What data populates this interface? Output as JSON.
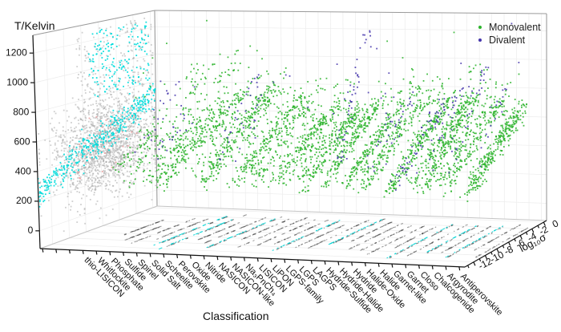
{
  "chart_data": {
    "type": "scatter3d",
    "axes": {
      "y": {
        "label": "T/Kelvin",
        "ticks": [
          0,
          200,
          400,
          600,
          800,
          1000,
          1200
        ],
        "range": [
          -120,
          1320
        ]
      },
      "x": {
        "label": "Classification",
        "categories": [
          "thio-LISICON",
          "Whitlockite",
          "Phosphate",
          "Sulfide",
          "Spinel",
          "Solid Salt",
          "Scheelite",
          "Perovskite",
          "Oxide",
          "Nitride",
          "NASICON",
          "NASICON-like",
          "Na₃PnCh₄",
          "LISICON",
          "LiPON",
          "LGPS-family",
          "LGPS",
          "LAGPS",
          "Hydride-Sulfide",
          "Hydride-Halide",
          "Hydride",
          "Halide-Oxide",
          "Halide",
          "Garnet-like",
          "Garnet",
          "Closo",
          "Chalcogenide",
          "Argyrodite",
          "Antiperovskite"
        ]
      },
      "z": {
        "label": "log₁₀σ",
        "ticks": [
          -12,
          -10,
          -8,
          -6,
          -4,
          -2,
          0
        ],
        "range": [
          -13.5,
          0.5
        ]
      }
    },
    "legend": [
      {
        "label": "Monovalent",
        "color": "#2cb42c"
      },
      {
        "label": "Divalent",
        "color": "#4636ac"
      }
    ],
    "colors": {
      "monovalent": "#2cb42c",
      "divalent": "#4636ac",
      "projection_side": "#a8a8a8",
      "projection_side_highlight": "#00dcdc",
      "projection_side_accent": "#e89595",
      "projection_floor": "#4a4a4a",
      "projection_floor_highlight": "#00d5d5",
      "grid": "#ececec",
      "box_edge": "#9a9a9a",
      "axis": "#111111"
    },
    "seed": 7,
    "clusters": [
      {
        "name": "thio-LISICON",
        "mono": {
          "n": 35,
          "T": [
            350,
            620
          ],
          "s": [
            -9,
            -3.5
          ]
        }
      },
      {
        "name": "Whitlockite",
        "mono": {
          "n": 25,
          "T": [
            350,
            560
          ],
          "s": [
            -10,
            -6
          ]
        }
      },
      {
        "name": "Phosphate",
        "mono": {
          "n": 60,
          "T": [
            300,
            660
          ],
          "s": [
            -11,
            -3
          ]
        },
        "di": {
          "n": 15,
          "T": [
            420,
            900
          ],
          "s": [
            -10,
            -5
          ]
        }
      },
      {
        "name": "Sulfide",
        "mono": {
          "n": 70,
          "T": [
            300,
            660
          ],
          "s": [
            -10,
            -2.5
          ]
        },
        "di": {
          "n": 18,
          "T": [
            350,
            800
          ],
          "s": [
            -9,
            -4
          ]
        }
      },
      {
        "name": "Spinel",
        "mono": {
          "n": 110,
          "T": [
            300,
            700
          ],
          "s": [
            -11,
            -2
          ],
          "tail": 1000
        },
        "floor_cyan": true
      },
      {
        "name": "Solid Salt",
        "mono": {
          "n": 140,
          "T": [
            300,
            750
          ],
          "s": [
            -12,
            -1.5
          ],
          "tail": 1060
        },
        "floor_cyan": true
      },
      {
        "name": "Scheelite",
        "mono": {
          "n": 45,
          "T": [
            340,
            650
          ],
          "s": [
            -9,
            -4
          ]
        }
      },
      {
        "name": "Perovskite",
        "mono": {
          "n": 100,
          "T": [
            300,
            760
          ],
          "s": [
            -10,
            -2
          ],
          "tail": 1000
        }
      },
      {
        "name": "Oxide",
        "mono": {
          "n": 150,
          "T": [
            300,
            800
          ],
          "s": [
            -11,
            -1.5
          ],
          "tail": 1150
        },
        "di": {
          "n": 22,
          "T": [
            400,
            950
          ],
          "s": [
            -10,
            -4
          ]
        },
        "floor_cyan": true
      },
      {
        "name": "Nitride",
        "mono": {
          "n": 60,
          "T": [
            300,
            700
          ],
          "s": [
            -9,
            -2
          ]
        },
        "di": {
          "n": 12,
          "T": [
            400,
            850
          ],
          "s": [
            -9,
            -5
          ]
        }
      },
      {
        "name": "NASICON",
        "mono": {
          "n": 140,
          "T": [
            300,
            760
          ],
          "s": [
            -11,
            -1.5
          ],
          "tail": 1000
        }
      },
      {
        "name": "NASICON-like",
        "mono": {
          "n": 110,
          "T": [
            300,
            700
          ],
          "s": [
            -10,
            -2
          ]
        }
      },
      {
        "name": "Na₃PnCh₄",
        "mono": {
          "n": 70,
          "T": [
            300,
            620
          ],
          "s": [
            -9,
            -2
          ]
        }
      },
      {
        "name": "LISICON",
        "mono": {
          "n": 120,
          "T": [
            300,
            700
          ],
          "s": [
            -11,
            -2
          ],
          "tail": 950
        },
        "floor_cyan": true
      },
      {
        "name": "LiPON",
        "mono": {
          "n": 80,
          "T": [
            300,
            620
          ],
          "s": [
            -10,
            -3
          ]
        }
      },
      {
        "name": "LGPS-family",
        "mono": {
          "n": 170,
          "T": [
            280,
            700
          ],
          "s": [
            -10,
            -1.5
          ],
          "tail": 920
        }
      },
      {
        "name": "LGPS",
        "mono": {
          "n": 190,
          "T": [
            280,
            710
          ],
          "s": [
            -9,
            -1
          ]
        },
        "floor_cyan": true
      },
      {
        "name": "LAGPS",
        "mono": {
          "n": 60,
          "T": [
            300,
            620
          ],
          "s": [
            -8,
            -2
          ]
        }
      },
      {
        "name": "Hydride-Sulfide",
        "mono": {
          "n": 110,
          "T": [
            300,
            700
          ],
          "s": [
            -10,
            -2
          ]
        },
        "di": {
          "n": 45,
          "T": [
            420,
            1260
          ],
          "s": [
            -11,
            -6
          ]
        }
      },
      {
        "name": "Hydride-Halide",
        "mono": {
          "n": 70,
          "T": [
            300,
            660
          ],
          "s": [
            -10,
            -3
          ]
        },
        "di": {
          "n": 12,
          "T": [
            350,
            700
          ],
          "s": [
            -9,
            -5
          ]
        }
      },
      {
        "name": "Hydride",
        "mono": {
          "n": 100,
          "T": [
            300,
            760
          ],
          "s": [
            -11,
            -2
          ],
          "tail": 1000
        },
        "di": {
          "n": 18,
          "T": [
            350,
            800
          ],
          "s": [
            -10,
            -4
          ]
        }
      },
      {
        "name": "Halide-Oxide",
        "mono": {
          "n": 60,
          "T": [
            300,
            660
          ],
          "s": [
            -9,
            -3
          ]
        }
      },
      {
        "name": "Halide",
        "mono": {
          "n": 190,
          "T": [
            280,
            760
          ],
          "s": [
            -12,
            -1.5
          ],
          "tail": 1000
        },
        "di": {
          "n": 55,
          "T": [
            300,
            760
          ],
          "s": [
            -11,
            -3
          ]
        },
        "floor_cyan": true
      },
      {
        "name": "Garnet-like",
        "mono": {
          "n": 170,
          "T": [
            300,
            760
          ],
          "s": [
            -11,
            -1.5
          ],
          "tail": 960
        }
      },
      {
        "name": "Garnet",
        "mono": {
          "n": 150,
          "T": [
            300,
            760
          ],
          "s": [
            -10,
            -1.5
          ]
        },
        "di": {
          "n": 20,
          "T": [
            400,
            900
          ],
          "s": [
            -9,
            -4
          ]
        },
        "floor_cyan": true
      },
      {
        "name": "Closo",
        "mono": {
          "n": 90,
          "T": [
            300,
            710
          ],
          "s": [
            -10,
            -2
          ]
        }
      },
      {
        "name": "Chalcogenide",
        "mono": {
          "n": 140,
          "T": [
            300,
            760
          ],
          "s": [
            -11,
            -1.5
          ],
          "tail": 1100
        },
        "di": {
          "n": 25,
          "T": [
            400,
            1000
          ],
          "s": [
            -10,
            -4
          ]
        },
        "floor_cyan": true
      },
      {
        "name": "Argyrodite",
        "mono": {
          "n": 170,
          "T": [
            280,
            700
          ],
          "s": [
            -10,
            -1
          ]
        }
      },
      {
        "name": "Antiperovskite",
        "mono": {
          "n": 130,
          "T": [
            300,
            710
          ],
          "s": [
            -11,
            -2
          ],
          "tail": 960
        },
        "di": {
          "n": 15,
          "T": [
            400,
            900
          ],
          "s": [
            -10,
            -5
          ]
        }
      }
    ],
    "wall_projection": {
      "gray_blob_n": 1600,
      "gray_sparse_n": 220,
      "cyan_band_n": 380,
      "cyan_cloud_n": 170,
      "pink_n": 30
    }
  }
}
